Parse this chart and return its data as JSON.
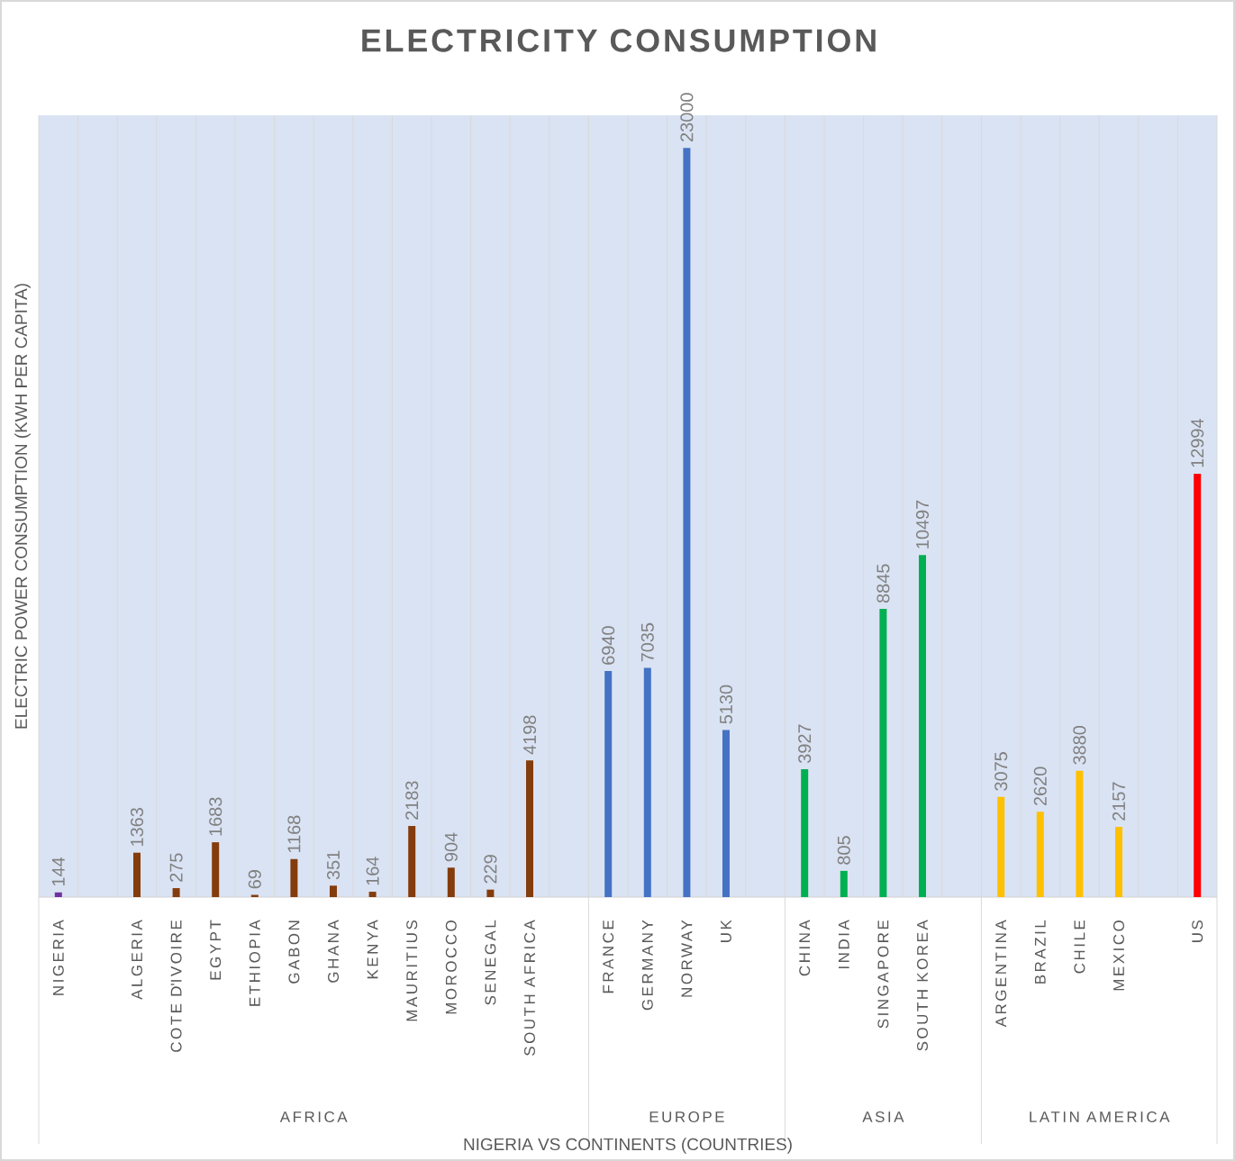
{
  "chart_data": {
    "type": "bar",
    "title": "ELECTRICITY CONSUMPTION",
    "xlabel": "NIGERIA VS CONTINENTS (COUNTRIES)",
    "ylabel": "ELECTRIC POWER CONSUMPTION (KWH PER CAPITA)",
    "categories": [
      "NIGERIA",
      null,
      "ALGERIA",
      "COTE D'IVOIRE",
      "EGYPT",
      "ETHIOPIA",
      "GABON",
      "GHANA",
      "KENYA",
      "MAURITIUS",
      "MOROCCO",
      "SENEGAL",
      "SOUTH AFRICA",
      null,
      "FRANCE",
      "GERMANY",
      "NORWAY",
      "UK",
      null,
      "CHINA",
      "INDIA",
      "SINGAPORE",
      "SOUTH KOREA",
      null,
      "ARGENTINA",
      "BRAZIL",
      "CHILE",
      "MEXICO",
      null,
      "US"
    ],
    "values": [
      144,
      null,
      1363,
      275,
      1683,
      69,
      1168,
      351,
      164,
      2183,
      904,
      229,
      4198,
      null,
      6940,
      7035,
      23000,
      5130,
      null,
      3927,
      805,
      8845,
      10497,
      null,
      3075,
      2620,
      3880,
      2157,
      null,
      12994
    ],
    "colors": [
      "#7030a0",
      null,
      "#843c0c",
      "#843c0c",
      "#843c0c",
      "#843c0c",
      "#843c0c",
      "#843c0c",
      "#843c0c",
      "#843c0c",
      "#843c0c",
      "#843c0c",
      "#843c0c",
      null,
      "#4472c4",
      "#4472c4",
      "#4472c4",
      "#4472c4",
      null,
      "#00b050",
      "#00b050",
      "#00b050",
      "#00b050",
      null,
      "#ffc000",
      "#ffc000",
      "#ffc000",
      "#ffc000",
      null,
      "#ff0000"
    ],
    "ylim": [
      0,
      24000
    ],
    "data_labels": true,
    "grid": "x",
    "annotations": [
      "AFRICA",
      "EUROPE",
      "ASIA",
      "LATIN AMERICA"
    ]
  }
}
